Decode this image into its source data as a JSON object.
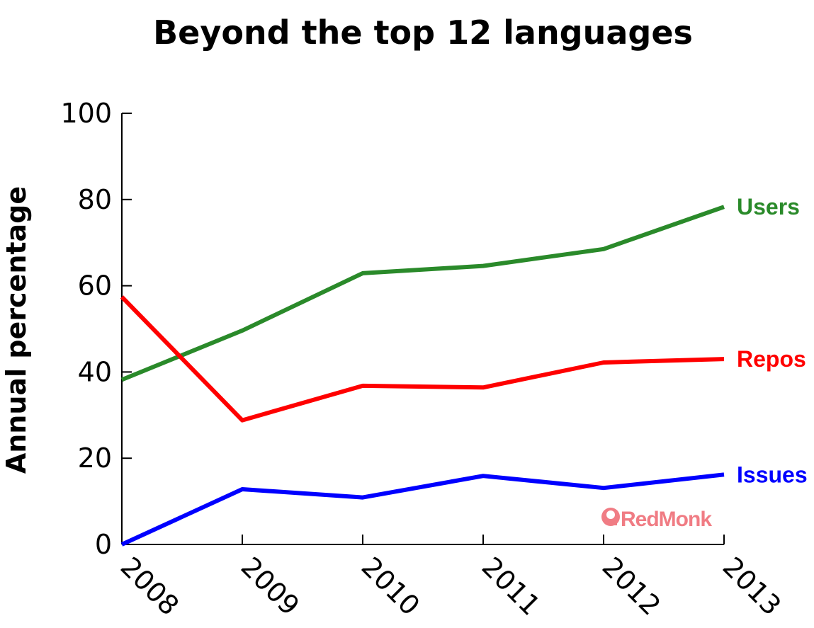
{
  "chart_data": {
    "type": "line",
    "title": "Beyond the top 12 languages",
    "xlabel": "",
    "ylabel": "Annual percentage",
    "x": [
      "2008",
      "2009",
      "2010",
      "2011",
      "2012",
      "2013"
    ],
    "ylim": [
      0,
      100
    ],
    "yticks": [
      "0",
      "20",
      "40",
      "60",
      "80",
      "100"
    ],
    "grid": false,
    "series": [
      {
        "name": "Users",
        "color": "#2a8a2a",
        "values": [
          38.2,
          49.6,
          62.9,
          64.6,
          68.5,
          78.3
        ]
      },
      {
        "name": "Repos",
        "color": "#ff0000",
        "values": [
          57.4,
          28.8,
          36.8,
          36.4,
          42.2,
          43.0
        ]
      },
      {
        "name": "Issues",
        "color": "#0000ff",
        "values": [
          0,
          12.8,
          10.9,
          15.9,
          13.1,
          16.2
        ]
      }
    ]
  },
  "branding": {
    "logo_text": "RedMonk",
    "logo_color": "#f07c84",
    "logo_icon": "redmonk-logo-icon"
  }
}
